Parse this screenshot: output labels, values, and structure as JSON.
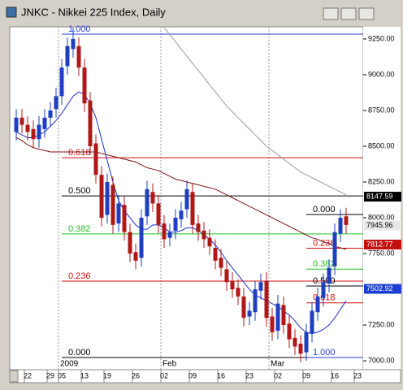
{
  "chart_data": {
    "type": "candlestick",
    "title": "JNKC - Nikkei 225 Index, Daily",
    "categories": [
      null,
      null,
      "22",
      null,
      null,
      null,
      "29",
      null,
      "05",
      null,
      null,
      null,
      "13",
      null,
      null,
      null,
      "19",
      null,
      null,
      null,
      null,
      "26",
      null,
      null,
      null,
      null,
      "02",
      null,
      null,
      null,
      null,
      "09",
      null,
      null,
      null,
      null,
      "16",
      null,
      null,
      null,
      null,
      "23",
      null,
      null,
      null,
      null,
      "02",
      null,
      null,
      null,
      null,
      "09",
      null,
      null,
      null,
      null,
      "16",
      null,
      null,
      null,
      "23"
    ],
    "periods": [
      null,
      null,
      null,
      null,
      null,
      null,
      null,
      null,
      "2009",
      null,
      null,
      null,
      null,
      null,
      null,
      null,
      null,
      null,
      null,
      null,
      null,
      null,
      null,
      null,
      null,
      null,
      "Feb",
      null,
      null,
      null,
      null,
      null,
      null,
      null,
      null,
      null,
      null,
      null,
      null,
      null,
      null,
      null,
      null,
      null,
      null,
      "Mar",
      null,
      null,
      null,
      null,
      null,
      null,
      null,
      null,
      null,
      null,
      null,
      null,
      null,
      null,
      null
    ],
    "open": [
      8600,
      8700,
      8650,
      8620,
      8550,
      8620,
      8700,
      8760,
      8850,
      9060,
      9180,
      9200,
      9050,
      8820,
      8520,
      8300,
      8020,
      8230,
      7960,
      8090,
      7900,
      7760,
      7720,
      8010,
      8180,
      8100,
      7960,
      7860,
      7910,
      7990,
      8060,
      8180,
      7960,
      7910,
      7860,
      7790,
      7720,
      7640,
      7560,
      7510,
      7450,
      7310,
      7340,
      7490,
      7560,
      7310,
      7210,
      7390,
      7260,
      7160,
      7120,
      7060,
      7190,
      7340,
      7440,
      7540,
      7660,
      7890,
      8010,
      null,
      null
    ],
    "high": [
      8760,
      8760,
      8710,
      8680,
      8710,
      8760,
      8810,
      8910,
      9110,
      9260,
      9330,
      9260,
      9110,
      8880,
      8580,
      8360,
      8310,
      8290,
      8160,
      8150,
      7960,
      7820,
      8060,
      8260,
      8240,
      8160,
      8020,
      7960,
      8060,
      8110,
      8260,
      8240,
      8020,
      7970,
      7920,
      7850,
      7780,
      7700,
      7620,
      7570,
      7510,
      7410,
      7560,
      7610,
      7620,
      7370,
      7460,
      7450,
      7320,
      7220,
      7180,
      7260,
      7410,
      7510,
      7610,
      7710,
      7960,
      8060,
      8070,
      null,
      null
    ],
    "low": [
      8540,
      8590,
      8540,
      8490,
      8490,
      8560,
      8640,
      8700,
      8790,
      9000,
      9120,
      8990,
      8740,
      8440,
      8240,
      7940,
      7960,
      7890,
      7900,
      7840,
      7690,
      7640,
      7660,
      7950,
      8040,
      7890,
      7790,
      7800,
      7850,
      7930,
      8000,
      7890,
      7840,
      7790,
      7740,
      7640,
      7590,
      7490,
      7440,
      7390,
      7240,
      7250,
      7280,
      7430,
      7240,
      7140,
      7150,
      7190,
      7090,
      7040,
      6990,
      7000,
      7130,
      7280,
      7380,
      7480,
      7600,
      7830,
      7890,
      null,
      null
    ],
    "close": [
      8700,
      8650,
      8600,
      8550,
      8650,
      8700,
      8750,
      8850,
      9050,
      9200,
      9250,
      9050,
      8800,
      8500,
      8300,
      8000,
      8250,
      7950,
      8100,
      7900,
      7750,
      7700,
      8000,
      8200,
      8100,
      7950,
      7850,
      7900,
      8000,
      8050,
      8200,
      7950,
      7900,
      7850,
      7800,
      7700,
      7650,
      7550,
      7500,
      7450,
      7300,
      7350,
      7500,
      7550,
      7300,
      7200,
      7400,
      7250,
      7150,
      7100,
      7050,
      7200,
      7350,
      7450,
      7550,
      7650,
      7900,
      8000,
      7950,
      null,
      null
    ],
    "up_color": "#1f3fbf",
    "down_color": "#b01818",
    "series": [
      {
        "color": "#1a2fc8",
        "values": [
          8600,
          8580,
          8560,
          8560,
          8580,
          8600,
          8640,
          8680,
          8730,
          8790,
          8850,
          8880,
          8860,
          8800,
          8700,
          8550,
          8400,
          8250,
          8120,
          8050,
          8000,
          7950,
          7920,
          7920,
          7950,
          7950,
          7930,
          7900,
          7900,
          7910,
          7930,
          7930,
          7910,
          7880,
          7850,
          7810,
          7760,
          7700,
          7650,
          7600,
          7550,
          7500,
          7460,
          7440,
          7420,
          7400,
          7380,
          7350,
          7320,
          7280,
          7230,
          7200,
          7190,
          7200,
          7220,
          7250,
          7300,
          7360,
          7420,
          null,
          null
        ]
      },
      {
        "color": "#7a1010",
        "values": [
          8560,
          8540,
          8510,
          8490,
          8480,
          8470,
          8460,
          8460,
          8460,
          8460,
          8460,
          8460,
          8460,
          8460,
          8460,
          8450,
          8440,
          8430,
          8420,
          8410,
          8400,
          8390,
          8370,
          8350,
          8340,
          8330,
          8310,
          8290,
          8270,
          8260,
          8250,
          8240,
          8230,
          8220,
          8210,
          8200,
          8180,
          8160,
          8140,
          8120,
          8100,
          8080,
          8060,
          8040,
          8020,
          8000,
          7980,
          7960,
          7940,
          7920,
          7900,
          7880,
          7860,
          7850,
          7830,
          7820,
          7800,
          7790,
          7780,
          null,
          null
        ]
      },
      {
        "color": "#9a9a9a",
        "values": [
          null,
          null,
          null,
          null,
          null,
          null,
          null,
          null,
          null,
          null,
          null,
          null,
          null,
          null,
          null,
          null,
          null,
          null,
          null,
          null,
          null,
          null,
          null,
          null,
          null,
          null,
          9330,
          9280,
          9230,
          9180,
          9130,
          9080,
          9030,
          8980,
          8930,
          8880,
          8830,
          8780,
          8740,
          8700,
          8660,
          8620,
          8580,
          8540,
          8500,
          8470,
          8440,
          8410,
          8380,
          8350,
          8320,
          8300,
          8280,
          8260,
          8240,
          8220,
          8200,
          8180,
          8160,
          null,
          null
        ]
      }
    ],
    "fibs": [
      {
        "levels": [
          {
            "label": "1.000",
            "value": 9284,
            "color": "#2a3fd0"
          },
          {
            "label": "0.618",
            "value": 8420,
            "color": "#d01010"
          },
          {
            "label": "0.500",
            "value": 8153,
            "color": "#000000"
          },
          {
            "label": "0.382",
            "value": 7887,
            "color": "#20c020"
          },
          {
            "label": "0.236",
            "value": 7557,
            "color": "#d01010"
          },
          {
            "label": "0.000",
            "value": 7023,
            "color": "#000000"
          }
        ]
      },
      {
        "levels": [
          {
            "label": "0.000",
            "value": 8023,
            "color": "#000000"
          },
          {
            "label": "0.236",
            "value": 7787,
            "color": "#d01010"
          },
          {
            "label": "0.382",
            "value": 7641,
            "color": "#20c020"
          },
          {
            "label": "0.500",
            "value": 7523,
            "color": "#000000"
          },
          {
            "label": "0.618",
            "value": 7405,
            "color": "#d01010"
          },
          {
            "label": "1.000",
            "value": 7023,
            "color": "#2a3fd0"
          }
        ]
      }
    ],
    "price_tags": [
      {
        "value": 8147.59,
        "bg": "#000000",
        "fg": "#ffffff"
      },
      {
        "value": 7945.96,
        "bg": "#e8e8e8",
        "fg": "#000000"
      },
      {
        "value": 7812.77,
        "bg": "#c01010",
        "fg": "#ffffff"
      },
      {
        "value": 7502.92,
        "bg": "#1a3fd0",
        "fg": "#ffffff"
      }
    ],
    "ylim": [
      6938,
      9335
    ],
    "yticks": [
      {
        "value": 9250,
        "label": "9250.00"
      },
      {
        "value": 9000,
        "label": "9000.00"
      },
      {
        "value": 8750,
        "label": "8750.00"
      },
      {
        "value": 8500,
        "label": "8500.00"
      },
      {
        "value": 8250,
        "label": "8250.00"
      },
      {
        "value": 8000,
        "label": "8000.00"
      },
      {
        "value": 7750,
        "label": "7750.00"
      },
      {
        "value": 7250,
        "label": "7250.00"
      },
      {
        "value": 7000,
        "label": "7000.00"
      }
    ]
  }
}
